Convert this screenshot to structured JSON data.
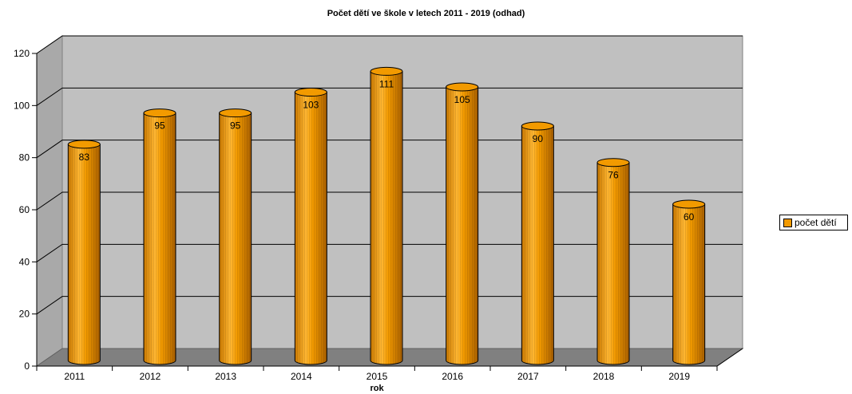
{
  "chart_data": {
    "type": "bar",
    "title": "Počet dětí ve škole v letech 2011 - 2019 (odhad)",
    "xlabel": "rok",
    "ylabel": "",
    "categories": [
      "2011",
      "2012",
      "2013",
      "2014",
      "2015",
      "2016",
      "2017",
      "2018",
      "2019"
    ],
    "series": [
      {
        "name": "počet dětí",
        "values": [
          83,
          95,
          95,
          103,
          111,
          105,
          90,
          76,
          60
        ]
      }
    ],
    "ylim": [
      0,
      120
    ],
    "yticks": [
      0,
      20,
      40,
      60,
      80,
      100,
      120
    ],
    "grid": true,
    "legend": "right",
    "data_labels": true,
    "style": "3d-cylinder"
  },
  "colors": {
    "bar": "#F29A00",
    "bar_dark": "#B86A00",
    "bar_light": "#FFC24A",
    "wall": "#C0C0C0",
    "side_wall": "#A9A9A9",
    "floor": "#808080",
    "grid": "#000000"
  }
}
